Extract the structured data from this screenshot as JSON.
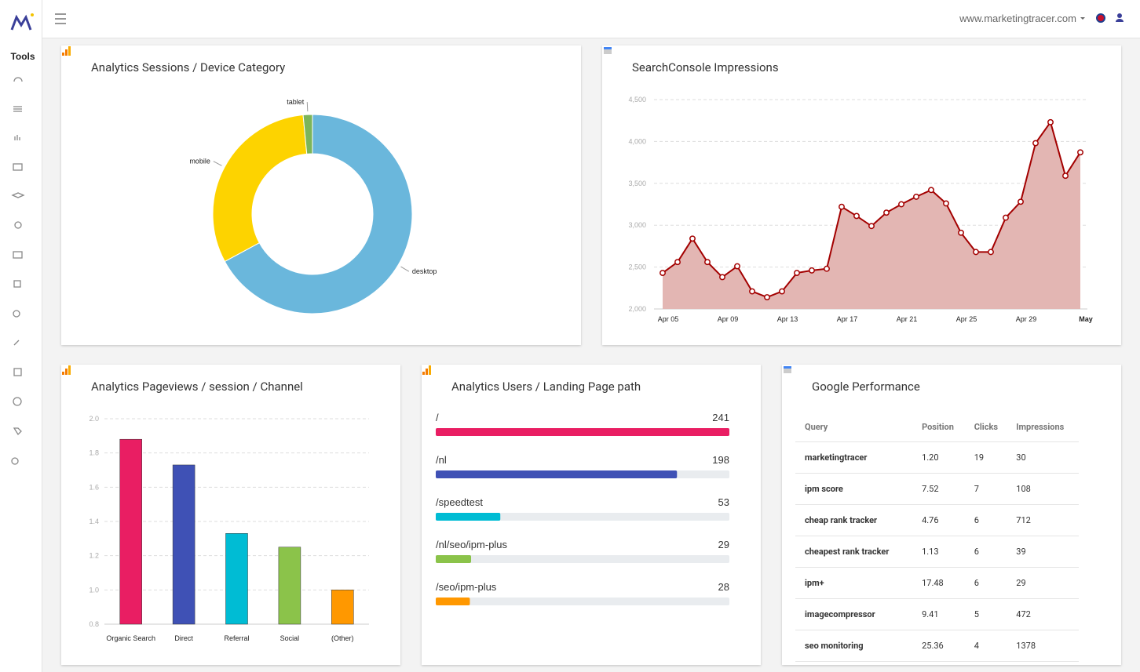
{
  "header": {
    "site": "www.marketingtracer.com"
  },
  "sidebar": {
    "title": "Tools"
  },
  "chart_data": [
    {
      "type": "donut",
      "title": "Analytics Sessions / Device Category",
      "categories": [
        "desktop",
        "mobile",
        "tablet"
      ],
      "values": [
        67.1,
        31.4,
        1.5
      ],
      "colors": [
        "#6ab7dc",
        "#fdd300",
        "#7cb55a"
      ]
    },
    {
      "type": "line",
      "title": "SearchConsole Impressions",
      "categories": [
        "Apr 05",
        null,
        null,
        null,
        "Apr 09",
        null,
        null,
        null,
        "Apr 13",
        null,
        null,
        null,
        "Apr 17",
        null,
        null,
        null,
        "Apr 21",
        null,
        null,
        null,
        "Apr 25",
        null,
        null,
        null,
        "Apr 29",
        null,
        null,
        null,
        "May"
      ],
      "values": [
        2430,
        2560,
        2840,
        2560,
        2380,
        2510,
        2210,
        2140,
        2210,
        2430,
        2460,
        2480,
        3220,
        3110,
        2990,
        3150,
        3250,
        3340,
        3420,
        3260,
        2910,
        2680,
        2680,
        3090,
        3280,
        3980,
        4230,
        3590,
        3870
      ],
      "color": "#a30000",
      "fill": "#e3b6b3",
      "ylim": [
        2000,
        4500
      ],
      "yticks": [
        {
          "value": 2000,
          "label": "2,000"
        },
        {
          "value": 2500,
          "label": "2,500"
        },
        {
          "value": 3000,
          "label": "3,000"
        },
        {
          "value": 3500,
          "label": "3,500"
        },
        {
          "value": 4000,
          "label": "4,000"
        },
        {
          "value": 4500,
          "label": "4,500"
        }
      ],
      "grid": true
    },
    {
      "type": "bar",
      "title": "Analytics Pageviews / session / Channel",
      "categories": [
        "Organic Search",
        "Direct",
        "Referral",
        "Social",
        "(Other)"
      ],
      "values": [
        1.88,
        1.73,
        1.33,
        1.25,
        1.0
      ],
      "colors": [
        "#e91e63",
        "#3f51b5",
        "#00bcd4",
        "#8bc34a",
        "#ff9800"
      ],
      "ylim": [
        0.8,
        2.0
      ],
      "yticks": [
        0.8,
        {
          "value": 1,
          "label": "1.0"
        },
        1.2,
        1.4,
        1.6,
        1.8,
        {
          "value": 2,
          "label": "2.0"
        }
      ],
      "grid": true
    },
    {
      "type": "progress",
      "title": "Analytics Users / Landing Page path",
      "categories": [
        "/",
        "/nl",
        "/speedtest",
        "/nl/seo/ipm-plus",
        "/seo/ipm-plus"
      ],
      "values": [
        241,
        198,
        53,
        29,
        28
      ],
      "colors": [
        "#e91e63",
        "#3f51b5",
        "#00bcd4",
        "#8bc34a",
        "#ff9800"
      ]
    }
  ],
  "table": {
    "title": "Google Performance",
    "columns": [
      "Query",
      "Position",
      "Clicks",
      "Impressions"
    ],
    "rows": [
      [
        "marketingtracer",
        "1.20",
        "19",
        "30"
      ],
      [
        "ipm score",
        "7.52",
        "7",
        "108"
      ],
      [
        "cheap rank tracker",
        "4.76",
        "6",
        "712"
      ],
      [
        "cheapest rank tracker",
        "1.13",
        "6",
        "39"
      ],
      [
        "ipm+",
        "17.48",
        "6",
        "29"
      ],
      [
        "imagecompressor",
        "9.41",
        "5",
        "472"
      ],
      [
        "seo monitoring",
        "25.36",
        "4",
        "1378"
      ]
    ]
  }
}
